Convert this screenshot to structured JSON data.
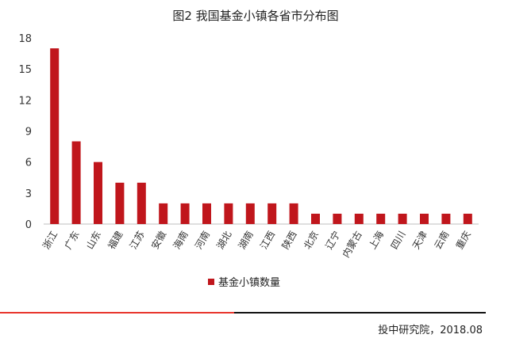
{
  "chart_data": {
    "type": "bar",
    "title": "图2 我国基金小镇各省市分布图",
    "categories": [
      "浙江",
      "广东",
      "山东",
      "福建",
      "江苏",
      "安徽",
      "海南",
      "河南",
      "湖北",
      "湖南",
      "江西",
      "陕西",
      "北京",
      "辽宁",
      "内蒙古",
      "上海",
      "四川",
      "天津",
      "云南",
      "重庆"
    ],
    "series": [
      {
        "name": "基金小镇数量",
        "values": [
          17,
          8,
          6,
          4,
          4,
          2,
          2,
          2,
          2,
          2,
          2,
          2,
          1,
          1,
          1,
          1,
          1,
          1,
          1,
          1
        ]
      }
    ],
    "yticks": [
      0,
      3,
      6,
      9,
      12,
      15,
      18
    ],
    "ylim": [
      0,
      18
    ],
    "grid": false,
    "legend_position": "bottom",
    "bar_color": "#c0161c"
  },
  "footer": {
    "source": "投中研究院，2018.08",
    "line_colors": [
      "#e8342b",
      "#111111"
    ]
  }
}
